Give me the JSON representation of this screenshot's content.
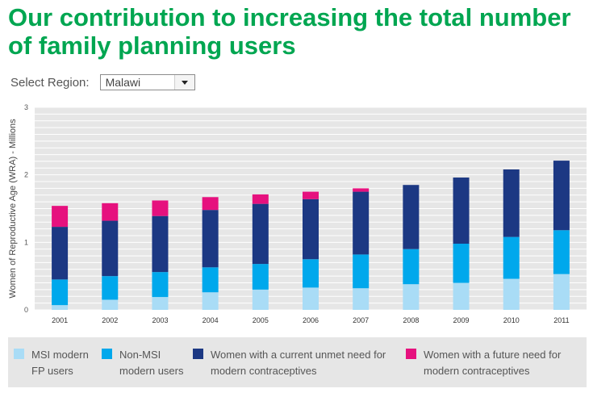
{
  "page": {
    "title": "Our contribution to increasing the total number of family planning users"
  },
  "region": {
    "label": "Select Region:",
    "selected": "Malawi",
    "control_icon": "dropdown-arrow-icon"
  },
  "chart_data": {
    "type": "bar",
    "stacked": true,
    "categories": [
      "2001",
      "2002",
      "2003",
      "2004",
      "2005",
      "2006",
      "2007",
      "2008",
      "2009",
      "2010",
      "2011"
    ],
    "ylabel": "Women of Reproductive Age (WRA) - Millions",
    "ylim": [
      0,
      3
    ],
    "yticks": [
      0,
      1,
      2,
      3
    ],
    "grid": true,
    "legend_position": "bottom",
    "series": [
      {
        "name": "MSI modern FP users",
        "color": "#a9dcf6",
        "values": [
          0.07,
          0.15,
          0.19,
          0.26,
          0.3,
          0.33,
          0.32,
          0.38,
          0.4,
          0.46,
          0.53
        ]
      },
      {
        "name": "Non-MSI modern users",
        "color": "#00a8ec",
        "values": [
          0.38,
          0.35,
          0.37,
          0.37,
          0.38,
          0.42,
          0.5,
          0.52,
          0.58,
          0.62,
          0.65
        ]
      },
      {
        "name": "Women with a current unmet need for modern contraceptives",
        "color": "#1c3883",
        "values": [
          0.78,
          0.82,
          0.83,
          0.85,
          0.89,
          0.89,
          0.93,
          0.95,
          0.98,
          1.0,
          1.03
        ]
      },
      {
        "name": "Women with a future need for modern contraceptives",
        "color": "#e6117e",
        "values": [
          0.31,
          0.26,
          0.23,
          0.19,
          0.14,
          0.11,
          0.05,
          0.0,
          0.0,
          0.0,
          0.0
        ]
      }
    ]
  },
  "legend": {
    "items": [
      {
        "line1": "MSI modern",
        "line2": "FP users",
        "color": "#a9dcf6"
      },
      {
        "line1": "Non-MSI",
        "line2": "modern users",
        "color": "#00a8ec"
      },
      {
        "line1": "Women with a current unmet need for",
        "line2": "modern contraceptives",
        "color": "#1c3883"
      },
      {
        "line1": "Women with a future need for",
        "line2": "modern contraceptives",
        "color": "#e6117e"
      }
    ]
  }
}
